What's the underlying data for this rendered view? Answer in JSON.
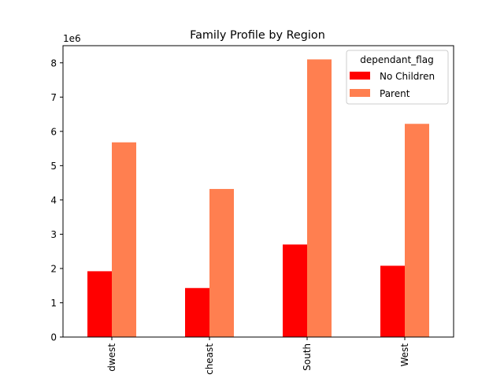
{
  "chart_data": {
    "type": "bar",
    "title": "Family Profile by Region",
    "xlabel": "",
    "ylabel": "",
    "scale_label": "1e6",
    "scale": 1000000,
    "ylim": [
      0,
      8500000
    ],
    "yticks": [
      0,
      1000000,
      2000000,
      3000000,
      4000000,
      5000000,
      6000000,
      7000000,
      8000000
    ],
    "ytick_labels": [
      "0",
      "1",
      "2",
      "3",
      "4",
      "5",
      "6",
      "7",
      "8"
    ],
    "categories": [
      "dwest",
      "cheast",
      "South",
      "West"
    ],
    "series": [
      {
        "name": "No Children",
        "color": "#ff0000",
        "values": [
          1920000,
          1430000,
          2700000,
          2080000
        ]
      },
      {
        "name": "Parent",
        "color": "#ff7f50",
        "values": [
          5680000,
          4320000,
          8100000,
          6220000
        ]
      }
    ],
    "legend": {
      "title": "dependant_flag",
      "position": "top-right"
    },
    "grid": false
  }
}
